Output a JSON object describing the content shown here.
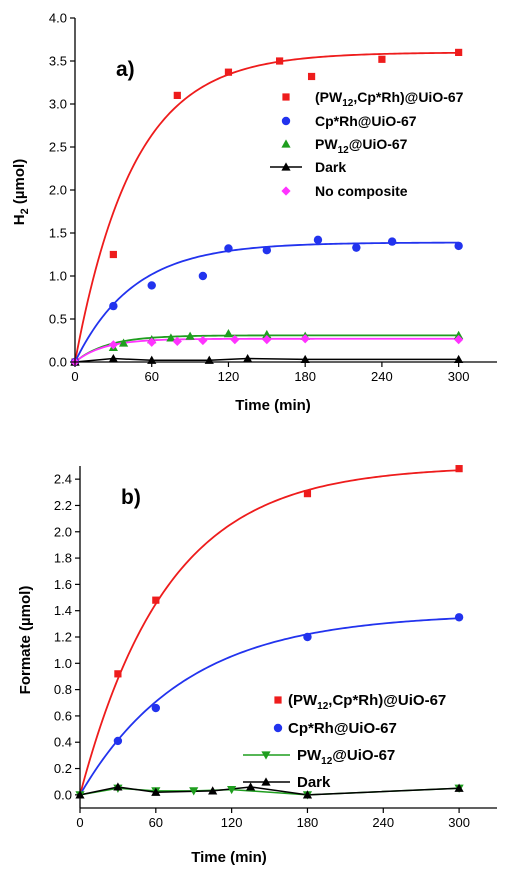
{
  "chart_data": [
    {
      "panel": "a)",
      "type": "scatter",
      "xlabel": "Time (min)",
      "ylabel_main": "H",
      "ylabel_sub": "2",
      "ylabel_rest": " (µmol)",
      "xlim": [
        0,
        330
      ],
      "ylim": [
        0,
        4.0
      ],
      "xticks": [
        "0",
        "60",
        "120",
        "180",
        "240",
        "300"
      ],
      "xtick_values": [
        0,
        60,
        120,
        180,
        240,
        300
      ],
      "yticks": [
        "0.0",
        "0.5",
        "1.0",
        "1.5",
        "2.0",
        "2.5",
        "3.0",
        "3.5",
        "4.0"
      ],
      "ytick_values": [
        0,
        0.5,
        1.0,
        1.5,
        2.0,
        2.5,
        3.0,
        3.5,
        4.0
      ],
      "series": [
        {
          "name": "(PW12,Cp*Rh)@UiO-67",
          "label_parts": [
            "(PW",
            "12",
            ",Cp*Rh)@UiO-67"
          ],
          "marker": "square",
          "color": "#ee1c1c",
          "x": [
            0,
            30,
            80,
            120,
            160,
            185,
            240,
            300
          ],
          "y": [
            0.0,
            1.25,
            3.1,
            3.37,
            3.5,
            3.32,
            3.52,
            3.6
          ],
          "fit": {
            "a": 3.6,
            "k": 0.022
          }
        },
        {
          "name": "Cp*Rh@UiO-67",
          "label_parts": [
            "Cp*Rh@UiO-67"
          ],
          "marker": "circle",
          "color": "#2233ee",
          "x": [
            0,
            30,
            60,
            100,
            120,
            150,
            190,
            220,
            248,
            300
          ],
          "y": [
            0.0,
            0.65,
            0.89,
            1.0,
            1.32,
            1.3,
            1.42,
            1.33,
            1.4,
            1.35
          ],
          "fit": {
            "a": 1.39,
            "k": 0.022
          }
        },
        {
          "name": "PW12@UiO-67",
          "label_parts": [
            "PW",
            "12",
            "@UiO-67"
          ],
          "marker": "triangle",
          "color": "#1f9e1f",
          "x": [
            0,
            30,
            38,
            60,
            75,
            90,
            120,
            150,
            180,
            300
          ],
          "y": [
            0.0,
            0.17,
            0.22,
            0.26,
            0.28,
            0.3,
            0.33,
            0.32,
            0.3,
            0.31
          ],
          "fit": {
            "a": 0.31,
            "k": 0.04
          }
        },
        {
          "name": "Dark",
          "label_parts": [
            "Dark"
          ],
          "marker": "triangle",
          "color": "#000000",
          "connect": true,
          "x": [
            0,
            30,
            60,
            105,
            135,
            180,
            300
          ],
          "y": [
            0.0,
            0.04,
            0.02,
            0.02,
            0.04,
            0.03,
            0.03
          ]
        },
        {
          "name": "No composite",
          "label_parts": [
            "No composite"
          ],
          "marker": "diamond",
          "color": "#ff33ff",
          "x": [
            0,
            30,
            60,
            80,
            100,
            125,
            150,
            180,
            300
          ],
          "y": [
            0.0,
            0.2,
            0.23,
            0.24,
            0.25,
            0.26,
            0.26,
            0.27,
            0.26
          ],
          "fit": {
            "a": 0.27,
            "k": 0.045
          }
        }
      ]
    },
    {
      "panel": "b)",
      "type": "scatter",
      "xlabel": "Time (min)",
      "ylabel": "Formate (µmol)",
      "xlim": [
        0,
        330
      ],
      "ylim": [
        -0.1,
        2.5
      ],
      "xticks": [
        "0",
        "60",
        "120",
        "180",
        "240",
        "300"
      ],
      "xtick_values": [
        0,
        60,
        120,
        180,
        240,
        300
      ],
      "yticks": [
        "0.0",
        "0.2",
        "0.4",
        "0.6",
        "0.8",
        "1.0",
        "1.2",
        "1.4",
        "1.6",
        "1.8",
        "2.0",
        "2.2",
        "2.4"
      ],
      "ytick_values": [
        0,
        0.2,
        0.4,
        0.6,
        0.8,
        1.0,
        1.2,
        1.4,
        1.6,
        1.8,
        2.0,
        2.2,
        2.4
      ],
      "series": [
        {
          "name": "(PW12,Cp*Rh)@UiO-67",
          "label_parts": [
            "(PW",
            "12",
            ",Cp*Rh)@UiO-67"
          ],
          "marker": "square",
          "color": "#ee1c1c",
          "x": [
            30,
            60,
            180,
            300
          ],
          "y": [
            0.92,
            1.48,
            2.29,
            2.48
          ],
          "fit": {
            "a": 2.5,
            "k": 0.0145
          }
        },
        {
          "name": "Cp*Rh@UiO-67",
          "label_parts": [
            "Cp*Rh@UiO-67"
          ],
          "marker": "circle",
          "color": "#2233ee",
          "x": [
            30,
            60,
            180,
            300
          ],
          "y": [
            0.41,
            0.66,
            1.2,
            1.35
          ],
          "fit": {
            "a": 1.38,
            "k": 0.012
          }
        },
        {
          "name": "PW12@UiO-67",
          "label_parts": [
            "PW",
            "12",
            "@UiO-67"
          ],
          "marker": "triangle-down",
          "color": "#1f9e1f",
          "connect": true,
          "x": [
            0,
            30,
            60,
            90,
            120,
            180,
            300
          ],
          "y": [
            0.0,
            0.05,
            0.03,
            0.03,
            0.04,
            0.0,
            0.05
          ]
        },
        {
          "name": "Dark",
          "label_parts": [
            "Dark"
          ],
          "marker": "triangle",
          "color": "#000000",
          "connect": true,
          "x": [
            0,
            30,
            60,
            105,
            135,
            180,
            300
          ],
          "y": [
            0.0,
            0.06,
            0.02,
            0.03,
            0.06,
            0.0,
            0.05
          ]
        }
      ]
    }
  ]
}
